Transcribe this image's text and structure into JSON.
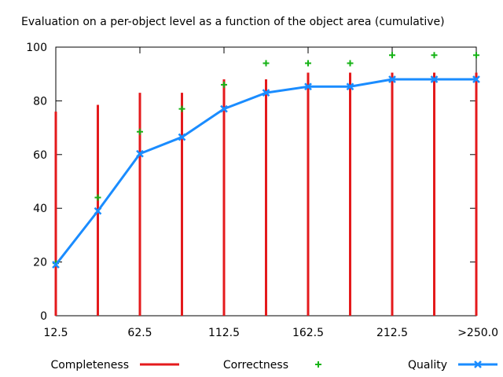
{
  "chart_data": {
    "type": "bar",
    "title": "Evaluation on a per-object level as a function of the object area (cumulative)",
    "xlabel": "",
    "ylabel": "",
    "x": [
      12.5,
      37.5,
      62.5,
      87.5,
      112.5,
      137.5,
      162.5,
      187.5,
      212.5,
      237.5,
      262.5
    ],
    "xlim": [
      12.5,
      262.5
    ],
    "ylim": [
      0,
      100
    ],
    "x_ticks": [
      {
        "x": 12.5,
        "label": "12.5"
      },
      {
        "x": 62.5,
        "label": "62.5"
      },
      {
        "x": 112.5,
        "label": "112.5"
      },
      {
        "x": 162.5,
        "label": "162.5"
      },
      {
        "x": 212.5,
        "label": "212.5"
      },
      {
        "x": 262.5,
        "label": ">250.0"
      }
    ],
    "y_ticks": [
      "0",
      "20",
      "40",
      "60",
      "80",
      "100"
    ],
    "grid": false,
    "legend_position": "bottom",
    "series": [
      {
        "name": "Completeness",
        "style": "impulses",
        "color": "#e41a1c",
        "values": [
          76,
          78.5,
          83,
          83,
          88,
          88,
          90.5,
          90.5,
          90.5,
          90.5,
          90.5
        ]
      },
      {
        "name": "Correctness",
        "style": "points",
        "marker": "plus",
        "color": "#16b316",
        "values": [
          19.5,
          44,
          68.5,
          77,
          86,
          94,
          94,
          94,
          97,
          97,
          97
        ]
      },
      {
        "name": "Quality",
        "style": "linespoints",
        "marker": "x",
        "color": "#1a8cff",
        "values": [
          19,
          39,
          60.3,
          66.5,
          77,
          83,
          85.3,
          85.3,
          88,
          88,
          88
        ]
      }
    ]
  }
}
